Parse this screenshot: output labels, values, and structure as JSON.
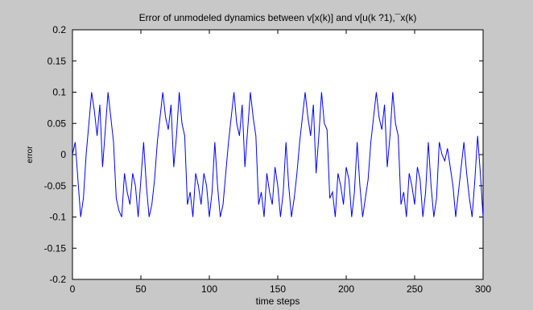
{
  "chart_data": {
    "type": "line",
    "title": "Error of unmodeled dynamics between v[x(k)] and v[u(k ?1),¯x(k)",
    "xlabel": "time steps",
    "ylabel": "error",
    "xlim": [
      0,
      300
    ],
    "ylim": [
      -0.2,
      0.2
    ],
    "xticks": [
      0,
      50,
      100,
      150,
      200,
      250,
      300
    ],
    "yticks": [
      -0.2,
      -0.15,
      -0.1,
      -0.05,
      0,
      0.05,
      0.1,
      0.15,
      0.2
    ],
    "xtick_labels": [
      "0",
      "50",
      "100",
      "150",
      "200",
      "250",
      "300"
    ],
    "ytick_labels": [
      "-0.2",
      "-0.15",
      "-0.1",
      "-0.05",
      "0",
      "0.05",
      "0.1",
      "0.15",
      "0.2"
    ],
    "grid": false,
    "colors": {
      "line": "#0000ff",
      "figure_bg": "#c8c8c8",
      "axes_bg": "#ffffff"
    },
    "series": [
      {
        "x": [
          0,
          2,
          4,
          6,
          8,
          10,
          12,
          14,
          16,
          18,
          20,
          22,
          24,
          26,
          28,
          30,
          32,
          34,
          36,
          38,
          40,
          42,
          44,
          46,
          48,
          50,
          52,
          54,
          56,
          58,
          60,
          62,
          64,
          66,
          68,
          70,
          72,
          74,
          76,
          78,
          80,
          82,
          84,
          86,
          88,
          90,
          92,
          94,
          96,
          98,
          100,
          102,
          104,
          106,
          108,
          110,
          112,
          114,
          116,
          118,
          120,
          122,
          124,
          126,
          128,
          130,
          132,
          134,
          136,
          138,
          140,
          142,
          144,
          146,
          148,
          150,
          152,
          154,
          156,
          158,
          160,
          162,
          164,
          166,
          168,
          170,
          172,
          174,
          176,
          178,
          180,
          182,
          184,
          186,
          188,
          190,
          192,
          194,
          196,
          198,
          200,
          202,
          204,
          206,
          208,
          210,
          212,
          214,
          216,
          218,
          220,
          222,
          224,
          226,
          228,
          230,
          232,
          234,
          236,
          238,
          240,
          242,
          244,
          246,
          248,
          250,
          252,
          254,
          256,
          258,
          260,
          262,
          264,
          266,
          268,
          270,
          272,
          274,
          276,
          278,
          280,
          282,
          284,
          286,
          288,
          290,
          292,
          294,
          296,
          298,
          300
        ],
        "y": [
          0,
          0.02,
          -0.04,
          -0.1,
          -0.07,
          0,
          0.05,
          0.1,
          0.07,
          0.03,
          0.08,
          -0.02,
          0.04,
          0.1,
          0.06,
          0.02,
          -0.07,
          -0.09,
          -0.1,
          -0.03,
          -0.06,
          -0.08,
          -0.03,
          -0.05,
          -0.1,
          -0.04,
          0.02,
          -0.05,
          -0.1,
          -0.08,
          -0.04,
          0.02,
          0.06,
          0.1,
          0.06,
          0.04,
          0.08,
          -0.02,
          0.03,
          0.1,
          0.05,
          0.03,
          -0.08,
          -0.06,
          -0.1,
          -0.03,
          -0.05,
          -0.08,
          -0.03,
          -0.05,
          -0.1,
          -0.06,
          0.02,
          -0.05,
          -0.1,
          -0.08,
          -0.03,
          0.02,
          0.06,
          0.1,
          0.05,
          0.03,
          0.08,
          -0.02,
          0.04,
          0.1,
          0.06,
          0.03,
          -0.08,
          -0.06,
          -0.1,
          -0.03,
          -0.06,
          -0.08,
          -0.02,
          -0.05,
          -0.1,
          -0.06,
          0.02,
          -0.05,
          -0.1,
          -0.07,
          -0.03,
          0.02,
          0.06,
          0.1,
          0.06,
          0.03,
          0.08,
          -0.03,
          0.03,
          0.1,
          0.05,
          0.04,
          -0.07,
          -0.06,
          -0.1,
          -0.03,
          -0.05,
          -0.08,
          -0.02,
          -0.04,
          -0.1,
          -0.06,
          0.02,
          -0.05,
          -0.1,
          -0.07,
          -0.04,
          0.02,
          0.06,
          0.1,
          0.06,
          0.04,
          0.08,
          -0.02,
          0.03,
          0.1,
          0.05,
          0.03,
          -0.08,
          -0.06,
          -0.1,
          -0.03,
          -0.05,
          -0.08,
          -0.02,
          -0.04,
          -0.1,
          -0.06,
          0.02,
          -0.05,
          -0.1,
          -0.07,
          0.02,
          0.0,
          -0.01,
          0.01,
          -0.02,
          -0.05,
          -0.1,
          -0.06,
          -0.02,
          0.02,
          -0.03,
          -0.07,
          -0.1,
          -0.04,
          0.03,
          -0.03,
          -0.1
        ]
      }
    ]
  }
}
